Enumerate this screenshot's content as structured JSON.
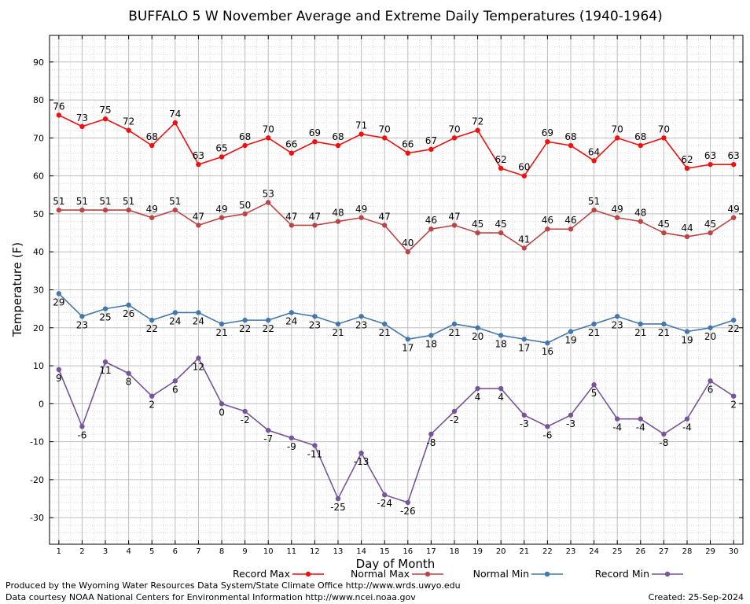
{
  "chart_data": {
    "type": "line",
    "title": "BUFFALO 5 W November Average and Extreme Daily Temperatures (1940-1964)",
    "xlabel": "Day of Month",
    "ylabel": "Temperature (F)",
    "x": [
      1,
      2,
      3,
      4,
      5,
      6,
      7,
      8,
      9,
      10,
      11,
      12,
      13,
      14,
      15,
      16,
      17,
      18,
      19,
      20,
      21,
      22,
      23,
      24,
      25,
      26,
      27,
      28,
      29,
      30
    ],
    "xlim": [
      0.6,
      30.4
    ],
    "ylim": [
      -37,
      97
    ],
    "yticks": [
      -30,
      -20,
      -10,
      0,
      10,
      20,
      30,
      40,
      50,
      60,
      70,
      80,
      90
    ],
    "grid": true,
    "legend": "bottom",
    "series": [
      {
        "name": "Record Max",
        "color": "#ee1111",
        "values": [
          76,
          73,
          75,
          72,
          68,
          74,
          63,
          65,
          68,
          70,
          66,
          69,
          68,
          71,
          70,
          66,
          67,
          70,
          72,
          62,
          60,
          69,
          68,
          64,
          70,
          68,
          70,
          62,
          63,
          63
        ]
      },
      {
        "name": "Normal Max",
        "color": "#bb4444",
        "values": [
          51,
          51,
          51,
          51,
          49,
          51,
          47,
          49,
          50,
          53,
          47,
          47,
          48,
          49,
          47,
          40,
          46,
          47,
          45,
          45,
          41,
          46,
          46,
          51,
          49,
          48,
          45,
          44,
          45,
          49
        ]
      },
      {
        "name": "Normal Min",
        "color": "#4477aa",
        "values": [
          29,
          23,
          25,
          26,
          22,
          24,
          24,
          21,
          22,
          22,
          24,
          23,
          21,
          23,
          21,
          17,
          18,
          21,
          20,
          18,
          17,
          16,
          19,
          21,
          23,
          21,
          21,
          19,
          20,
          22
        ]
      },
      {
        "name": "Record Min",
        "color": "#775599",
        "values": [
          9,
          -6,
          11,
          8,
          2,
          6,
          12,
          0,
          -2,
          -7,
          -9,
          -11,
          -25,
          -13,
          -24,
          -26,
          -8,
          -2,
          4,
          4,
          -3,
          -6,
          -3,
          5,
          -4,
          -4,
          -8,
          -4,
          6,
          2
        ]
      }
    ]
  },
  "footer": {
    "produced_by": "Produced by the Wyoming Water Resources Data System/State Climate Office http://www.wrds.uwyo.edu",
    "courtesy": "Data courtesy NOAA National Centers for Environmental Information http://www.ncei.noaa.gov",
    "created": "Created:  25-Sep-2024"
  }
}
